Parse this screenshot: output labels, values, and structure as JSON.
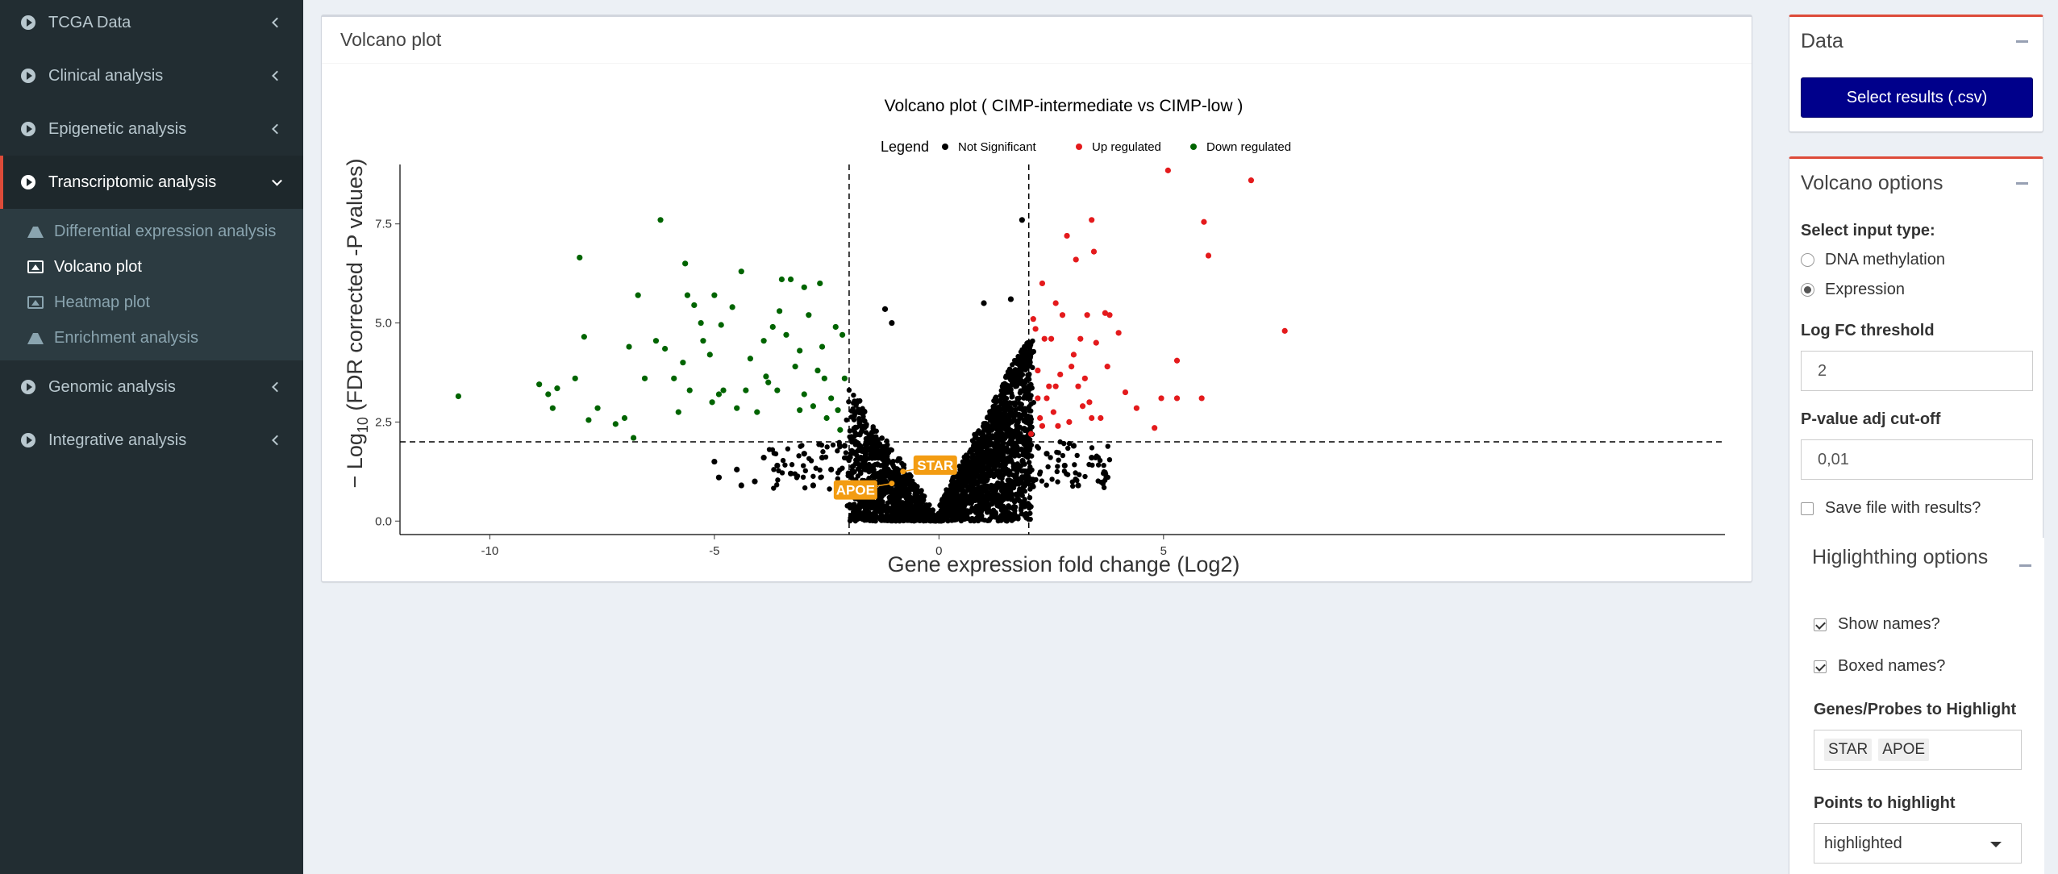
{
  "sidebar": {
    "items": [
      {
        "label": "TCGA Data"
      },
      {
        "label": "Clinical analysis"
      },
      {
        "label": "Epigenetic analysis"
      },
      {
        "label": "Transcriptomic analysis"
      },
      {
        "label": "Genomic analysis"
      },
      {
        "label": "Integrative analysis"
      }
    ],
    "subitems": [
      {
        "label": "Differential expression analysis"
      },
      {
        "label": "Volcano plot"
      },
      {
        "label": "Heatmap plot"
      },
      {
        "label": "Enrichment analysis"
      }
    ]
  },
  "plot_box": {
    "title": "Volcano plot"
  },
  "chart_data": {
    "type": "scatter",
    "title": "Volcano plot ( CIMP-intermediate vs CIMP-low )",
    "xlabel": "Gene expression fold change (Log2)",
    "ylabel_prefix": "− Log",
    "ylabel_sub": "10",
    "ylabel_suffix": " (FDR corrected -P values)",
    "xlim": [
      -12,
      17.5
    ],
    "ylim": [
      -0.3,
      9.0
    ],
    "x_ticks": [
      -10,
      -5,
      0,
      5
    ],
    "x_tick_labels": [
      "-10",
      "-5",
      "0",
      "5"
    ],
    "y_ticks": [
      0,
      2.5,
      5,
      7.5
    ],
    "y_tick_labels": [
      "0.0",
      "2.5",
      "5.0",
      "7.5"
    ],
    "fc_threshold": 2,
    "p_threshold_line": 2,
    "legend": {
      "title": "Legend",
      "placement": "top",
      "entries": [
        {
          "name": "Not Significant",
          "color": "#000000"
        },
        {
          "name": "Up regulated",
          "color": "#e41a1c"
        },
        {
          "name": "Down regulated",
          "color": "#006400"
        }
      ]
    },
    "series": [
      {
        "name": "Down regulated",
        "color": "#006400",
        "points": [
          [
            -10.7,
            3.15
          ],
          [
            -8.9,
            3.45
          ],
          [
            -8.7,
            3.2
          ],
          [
            -8.6,
            2.85
          ],
          [
            -8.5,
            3.35
          ],
          [
            -8.1,
            3.6
          ],
          [
            -8.0,
            6.65
          ],
          [
            -7.9,
            4.65
          ],
          [
            -7.8,
            2.55
          ],
          [
            -7.6,
            2.85
          ],
          [
            -7.2,
            2.45
          ],
          [
            -7.0,
            2.6
          ],
          [
            -6.9,
            4.4
          ],
          [
            -6.8,
            2.1
          ],
          [
            -6.7,
            5.7
          ],
          [
            -6.3,
            4.55
          ],
          [
            -6.1,
            4.35
          ],
          [
            -5.9,
            3.6
          ],
          [
            -6.2,
            7.6
          ],
          [
            -5.8,
            2.75
          ],
          [
            -5.7,
            4.0
          ],
          [
            -5.6,
            5.7
          ],
          [
            -5.3,
            5.0
          ],
          [
            -5.25,
            4.55
          ],
          [
            -5.1,
            4.2
          ],
          [
            -5.0,
            5.7
          ],
          [
            -4.9,
            3.2
          ],
          [
            -4.8,
            3.3
          ],
          [
            -4.6,
            5.4
          ],
          [
            -4.5,
            2.85
          ],
          [
            -4.2,
            4.1
          ],
          [
            -4.05,
            2.75
          ],
          [
            -3.9,
            4.55
          ],
          [
            -3.8,
            3.5
          ],
          [
            -3.7,
            4.9
          ],
          [
            -3.55,
            5.3
          ],
          [
            -3.4,
            4.7
          ],
          [
            -3.3,
            6.1
          ],
          [
            -3.2,
            3.9
          ],
          [
            -3.1,
            4.3
          ],
          [
            -3.0,
            3.2
          ],
          [
            -2.9,
            5.2
          ],
          [
            -2.8,
            2.9
          ],
          [
            -2.7,
            3.8
          ],
          [
            -2.6,
            4.4
          ],
          [
            -2.5,
            2.6
          ],
          [
            -2.4,
            3.1
          ],
          [
            -2.3,
            4.9
          ],
          [
            -2.2,
            2.3
          ],
          [
            -2.1,
            3.6
          ],
          [
            -4.4,
            6.3
          ],
          [
            -5.65,
            6.5
          ],
          [
            -3.5,
            6.1
          ],
          [
            -5.45,
            5.45
          ],
          [
            -4.85,
            4.95
          ],
          [
            -3.0,
            5.9
          ],
          [
            -2.65,
            6.0
          ],
          [
            -3.6,
            3.3
          ],
          [
            -3.1,
            2.8
          ],
          [
            -2.55,
            3.6
          ],
          [
            -2.25,
            2.8
          ],
          [
            -2.15,
            4.7
          ],
          [
            -3.85,
            3.65
          ],
          [
            -4.3,
            3.3
          ],
          [
            -5.05,
            3.0
          ],
          [
            -6.55,
            3.6
          ],
          [
            -5.55,
            3.3
          ]
        ]
      },
      {
        "name": "Up regulated",
        "color": "#e41a1c",
        "points": [
          [
            2.05,
            2.2
          ],
          [
            2.1,
            5.1
          ],
          [
            2.15,
            4.85
          ],
          [
            2.2,
            3.8
          ],
          [
            2.25,
            2.6
          ],
          [
            2.3,
            6.0
          ],
          [
            2.4,
            3.1
          ],
          [
            2.5,
            4.6
          ],
          [
            2.55,
            2.75
          ],
          [
            2.6,
            5.5
          ],
          [
            2.7,
            3.7
          ],
          [
            2.75,
            5.2
          ],
          [
            2.85,
            7.2
          ],
          [
            2.9,
            2.5
          ],
          [
            3.0,
            4.2
          ],
          [
            3.05,
            6.6
          ],
          [
            3.1,
            3.4
          ],
          [
            3.2,
            2.9
          ],
          [
            3.3,
            5.2
          ],
          [
            3.35,
            3.0
          ],
          [
            3.4,
            7.6
          ],
          [
            3.45,
            6.8
          ],
          [
            3.5,
            4.5
          ],
          [
            3.6,
            2.6
          ],
          [
            3.7,
            5.25
          ],
          [
            3.75,
            3.9
          ],
          [
            3.8,
            5.2
          ],
          [
            4.0,
            4.75
          ],
          [
            4.15,
            3.25
          ],
          [
            4.4,
            2.85
          ],
          [
            4.8,
            2.35
          ],
          [
            4.95,
            3.1
          ],
          [
            5.1,
            8.85
          ],
          [
            5.3,
            4.05
          ],
          [
            5.3,
            3.1
          ],
          [
            5.85,
            3.1
          ],
          [
            5.9,
            7.55
          ],
          [
            6.0,
            6.7
          ],
          [
            6.95,
            8.6
          ],
          [
            7.7,
            4.8
          ],
          [
            2.35,
            4.6
          ],
          [
            2.45,
            3.4
          ],
          [
            2.65,
            2.4
          ],
          [
            2.95,
            3.9
          ],
          [
            3.15,
            4.6
          ],
          [
            3.25,
            3.6
          ],
          [
            3.4,
            2.6
          ],
          [
            2.2,
            3.1
          ],
          [
            2.6,
            3.4
          ],
          [
            2.3,
            2.4
          ]
        ]
      },
      {
        "name": "Not Significant",
        "color": "#000000",
        "points": [
          [
            -5.0,
            1.5
          ],
          [
            -4.9,
            1.1
          ],
          [
            -4.5,
            1.3
          ],
          [
            -4.4,
            0.9
          ],
          [
            -4.1,
            1.0
          ],
          [
            -3.9,
            1.6
          ],
          [
            -3.6,
            1.4
          ],
          [
            -3.3,
            1.2
          ],
          [
            -3.0,
            1.7
          ],
          [
            -2.8,
            0.9
          ],
          [
            -2.6,
            1.6
          ],
          [
            -2.4,
            1.3
          ],
          [
            -2.1,
            1.9
          ],
          [
            -1.2,
            5.35
          ],
          [
            -1.05,
            5.0
          ],
          [
            1.0,
            5.5
          ],
          [
            1.6,
            5.6
          ],
          [
            1.85,
            7.6
          ],
          [
            2.4,
            1.7
          ],
          [
            2.8,
            1.4
          ],
          [
            3.0,
            1.9
          ],
          [
            3.1,
            0.9
          ],
          [
            3.4,
            1.6
          ],
          [
            3.7,
            1.2
          ]
        ]
      }
    ],
    "highlighted": [
      {
        "name": "STAR",
        "x": -0.8,
        "y": 1.25
      },
      {
        "name": "APOE",
        "x": -1.05,
        "y": 0.95
      }
    ]
  },
  "data_box": {
    "title": "Data",
    "button": "Select results (.csv)"
  },
  "volcano_options": {
    "title": "Volcano options",
    "input_type_label": "Select input type:",
    "input_types": [
      "DNA methylation",
      "Expression"
    ],
    "selected_input": "Expression",
    "logfc_label": "Log FC threshold",
    "logfc_value": "2",
    "pval_label": "P-value adj cut-off",
    "pval_value": "0,01",
    "save_label": "Save file with results?",
    "save_checked": false
  },
  "highlight_options": {
    "title": "Higlighthing options",
    "show_names": "Show names?",
    "boxed_names": "Boxed names?",
    "genes_label": "Genes/Probes to Highlight",
    "genes": [
      "STAR",
      "APOE"
    ],
    "points_label": "Points to highlight",
    "points_value": "highlighted"
  }
}
